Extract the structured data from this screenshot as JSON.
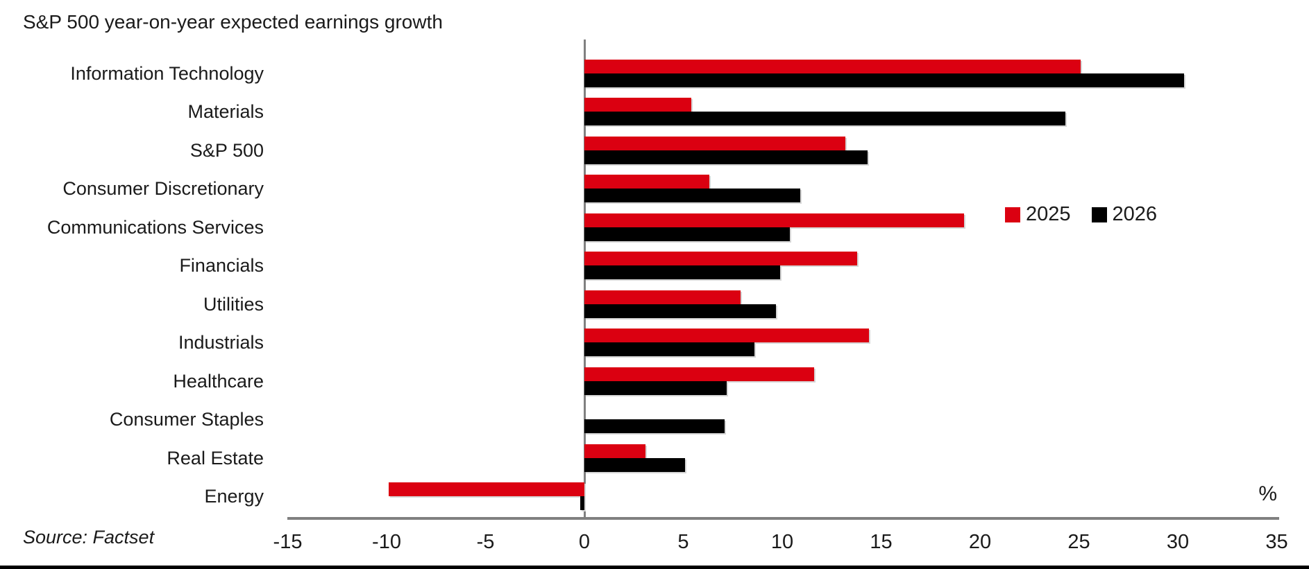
{
  "title": "S&P 500 year-on-year expected earnings growth",
  "source": "Source: Factset",
  "percent_label": "%",
  "legend": [
    {
      "label": "2025",
      "color": "#DB0011"
    },
    {
      "label": "2026",
      "color": "#000000"
    }
  ],
  "colors": {
    "series_2025": "#DB0011",
    "series_2026": "#000000",
    "axis": "#808080",
    "text": "#1a1a1a"
  },
  "chart_data": {
    "type": "bar",
    "orientation": "horizontal",
    "title": "S&P 500 year-on-year expected earnings growth",
    "categories": [
      "Information Technology",
      "Materials",
      "S&P 500",
      "Consumer Discretionary",
      "Communications Services",
      "Financials",
      "Utilities",
      "Industrials",
      "Healthcare",
      "Consumer Staples",
      "Real Estate",
      "Energy"
    ],
    "series": [
      {
        "name": "2025",
        "color": "#DB0011",
        "values": [
          25.1,
          5.4,
          13.2,
          6.3,
          19.2,
          13.8,
          7.9,
          14.4,
          11.6,
          0.0,
          3.1,
          -9.9
        ]
      },
      {
        "name": "2026",
        "color": "#000000",
        "values": [
          30.3,
          24.3,
          14.3,
          10.9,
          10.4,
          9.9,
          9.7,
          8.6,
          7.2,
          7.1,
          5.1,
          -0.2
        ]
      }
    ],
    "xlabel": "%",
    "xlim": [
      -15,
      35
    ],
    "xticks": [
      -15,
      -10,
      -5,
      0,
      5,
      10,
      15,
      20,
      25,
      30,
      35
    ],
    "grid": false,
    "legend_position": "right-middle",
    "source": "Source: Factset"
  }
}
